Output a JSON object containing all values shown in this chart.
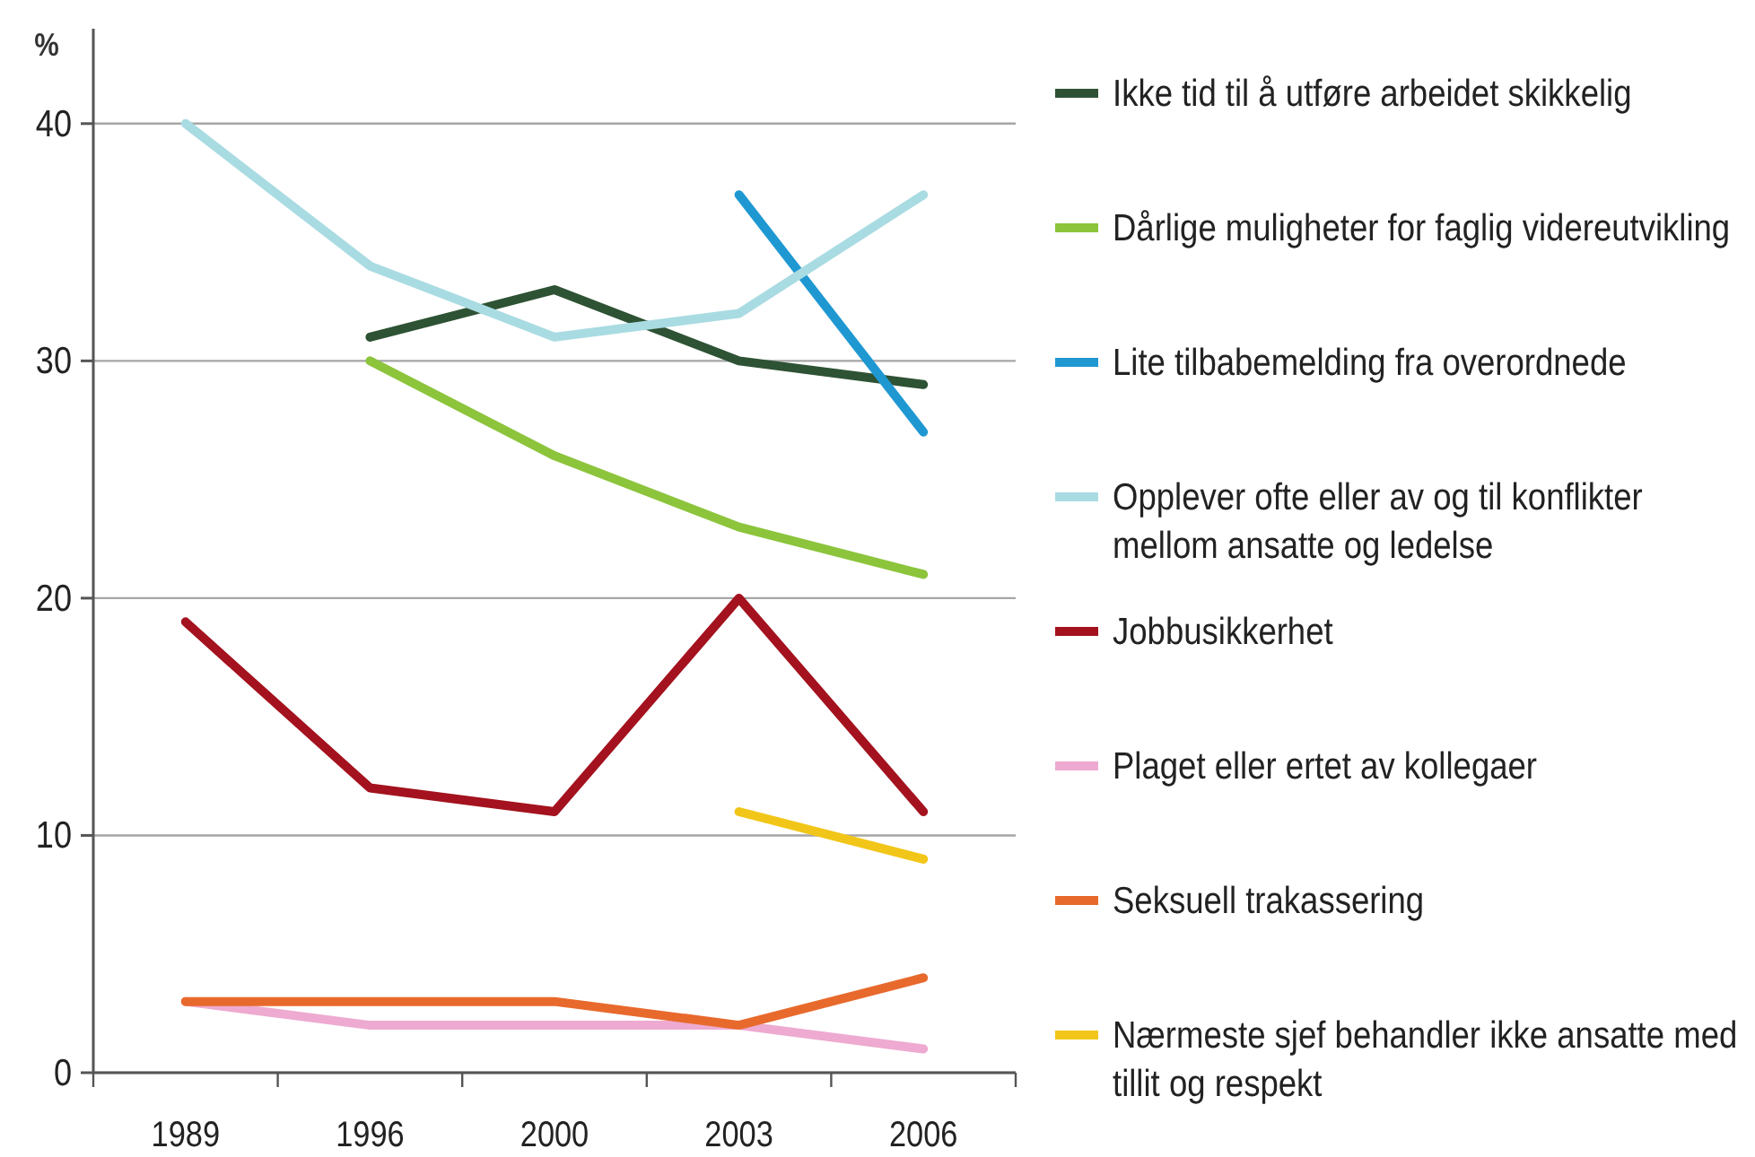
{
  "chart_data": {
    "type": "line",
    "ylabel": "%",
    "categories": [
      "1989",
      "1996",
      "2000",
      "2003",
      "2006"
    ],
    "ylim": [
      0,
      44
    ],
    "yticks": [
      0,
      10,
      20,
      30,
      40
    ],
    "grid": "y",
    "legend": "right",
    "series": [
      {
        "name": "Ikke tid til å utføre arbeidet skikkelig",
        "color": "#2e5234",
        "values": [
          null,
          31,
          33,
          30,
          29
        ]
      },
      {
        "name": "Dårlige muligheter for faglig videreutvikling",
        "color": "#8cc43c",
        "values": [
          null,
          30,
          26,
          23,
          21
        ]
      },
      {
        "name": "Lite tilbabemelding fra overordnede",
        "color": "#1f98d2",
        "values": [
          null,
          null,
          null,
          37,
          27
        ]
      },
      {
        "name": "Opplever ofte eller av og til konflikter mellom ansatte og ledelse",
        "color": "#a9dbe2",
        "values": [
          40,
          34,
          31,
          32,
          37
        ]
      },
      {
        "name": "Jobbusikkerhet",
        "color": "#a3121e",
        "values": [
          19,
          12,
          11,
          20,
          11
        ]
      },
      {
        "name": "Plaget eller ertet av kollegaer",
        "color": "#eeaad0",
        "values": [
          3,
          2,
          2,
          2,
          1
        ]
      },
      {
        "name": "Seksuell trakassering",
        "color": "#e8692c",
        "values": [
          3,
          3,
          3,
          2,
          4
        ]
      },
      {
        "name": "Nærmeste sjef behandler ikke ansatte med tillit og respekt",
        "color": "#f2c618",
        "values": [
          null,
          null,
          null,
          11,
          9
        ]
      }
    ]
  }
}
